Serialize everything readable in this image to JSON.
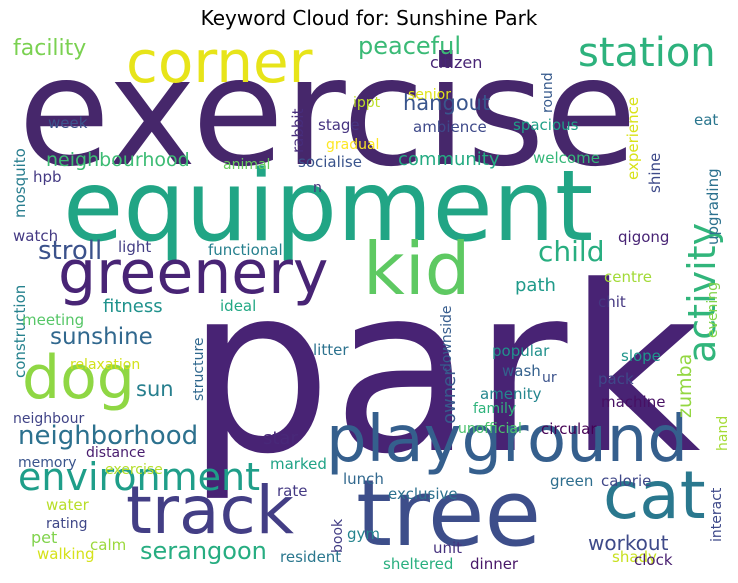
{
  "title": "Keyword Cloud for: Sunshine Park",
  "words": [
    {
      "text": "exercise",
      "color": "#46276b"
    },
    {
      "text": "park",
      "color": "#482374"
    },
    {
      "text": "equipment",
      "color": "#21a585"
    },
    {
      "text": "tree",
      "color": "#3d4e8a"
    },
    {
      "text": "playground",
      "color": "#355f8d"
    },
    {
      "text": "track",
      "color": "#433e85"
    },
    {
      "text": "kid",
      "color": "#5ec962"
    },
    {
      "text": "greenery",
      "color": "#482475"
    },
    {
      "text": "corner",
      "color": "#e7e419"
    },
    {
      "text": "station",
      "color": "#2db27d"
    },
    {
      "text": "dog",
      "color": "#8fd744"
    },
    {
      "text": "cat",
      "color": "#2a788e"
    },
    {
      "text": "environment",
      "color": "#1f9e89"
    },
    {
      "text": "activity",
      "color": "#31b57b"
    },
    {
      "text": "neighborhood",
      "color": "#2c718e"
    },
    {
      "text": "serangoon",
      "color": "#27ad81"
    },
    {
      "text": "stroll",
      "color": "#3b528b"
    },
    {
      "text": "child",
      "color": "#28ae80"
    },
    {
      "text": "sunshine",
      "color": "#31688e"
    },
    {
      "text": "peaceful",
      "color": "#3aba76"
    },
    {
      "text": "hangout",
      "color": "#39558c"
    },
    {
      "text": "facility",
      "color": "#7ad151"
    },
    {
      "text": "neighbourhood",
      "color": "#3dbc74"
    },
    {
      "text": "community",
      "color": "#25ab82"
    },
    {
      "text": "workout",
      "color": "#3e4a89"
    },
    {
      "text": "fitness",
      "color": "#20928c"
    },
    {
      "text": "owner",
      "color": "#38598c"
    },
    {
      "text": "sun",
      "color": "#277f8e"
    },
    {
      "text": "path",
      "color": "#1f9a8a"
    },
    {
      "text": "star",
      "color": "#482878"
    },
    {
      "text": "zumba",
      "color": "#93d741"
    },
    {
      "text": "citizen",
      "color": "#482576"
    },
    {
      "text": "round",
      "color": "#375a8c"
    },
    {
      "text": "week",
      "color": "#3b528b"
    },
    {
      "text": "stage",
      "color": "#463480"
    },
    {
      "text": "ambience",
      "color": "#3e4989"
    },
    {
      "text": "spacious",
      "color": "#1fa088"
    },
    {
      "text": "eat",
      "color": "#2a768e"
    },
    {
      "text": "senior",
      "color": "#dfe318"
    },
    {
      "text": "ippt",
      "color": "#bddf26"
    },
    {
      "text": "gradual",
      "color": "#fde725"
    },
    {
      "text": "rabbit",
      "color": "#472d7b"
    },
    {
      "text": "experience",
      "color": "#d8e219"
    },
    {
      "text": "mosquito",
      "color": "#287d8e"
    },
    {
      "text": "animal",
      "color": "#67cc5c"
    },
    {
      "text": "socialise",
      "color": "#3a548c"
    },
    {
      "text": "welcome",
      "color": "#35b779"
    },
    {
      "text": "hpb",
      "color": "#443a83"
    },
    {
      "text": "n",
      "color": "#46327e"
    },
    {
      "text": "shine",
      "color": "#3e4a89"
    },
    {
      "text": "upgrading",
      "color": "#2c718e"
    },
    {
      "text": "watch",
      "color": "#443983"
    },
    {
      "text": "light",
      "color": "#433d84"
    },
    {
      "text": "functional",
      "color": "#27808e"
    },
    {
      "text": "qigong",
      "color": "#482475"
    },
    {
      "text": "centre",
      "color": "#a2da37"
    },
    {
      "text": "construction",
      "color": "#26828e"
    },
    {
      "text": "evening",
      "color": "#84d44b"
    },
    {
      "text": "meeting",
      "color": "#56c667"
    },
    {
      "text": "ideal",
      "color": "#22a884"
    },
    {
      "text": "chit",
      "color": "#453781"
    },
    {
      "text": "relaxation",
      "color": "#d2e21b"
    },
    {
      "text": "downside",
      "color": "#365c8d"
    },
    {
      "text": "popular",
      "color": "#21918c"
    },
    {
      "text": "slope",
      "color": "#1f958b"
    },
    {
      "text": "litter",
      "color": "#2c728e"
    },
    {
      "text": "structure",
      "color": "#31688e"
    },
    {
      "text": "wash",
      "color": "#34618d"
    },
    {
      "text": "ur",
      "color": "#3b528b"
    },
    {
      "text": "pack",
      "color": "#3f4889"
    },
    {
      "text": "neighbour",
      "color": "#414487"
    },
    {
      "text": "amenity",
      "color": "#24868e"
    },
    {
      "text": "family",
      "color": "#2fb47c"
    },
    {
      "text": "machine",
      "color": "#471063"
    },
    {
      "text": "memory",
      "color": "#3a548c"
    },
    {
      "text": "distance",
      "color": "#481c6e"
    },
    {
      "text": "unofficial",
      "color": "#4ac16d"
    },
    {
      "text": "circular",
      "color": "#440154"
    },
    {
      "text": "hand",
      "color": "#a5db36"
    },
    {
      "text": "exercise",
      "color": "#b5de2b"
    },
    {
      "text": "marked",
      "color": "#20a386"
    },
    {
      "text": "rate",
      "color": "#443983"
    },
    {
      "text": "lunch",
      "color": "#31688e"
    },
    {
      "text": "interact",
      "color": "#3e4989"
    },
    {
      "text": "green",
      "color": "#2e6e8e"
    },
    {
      "text": "calorie",
      "color": "#3f4788"
    },
    {
      "text": "exclusive",
      "color": "#2d708e"
    },
    {
      "text": "water",
      "color": "#b8de29"
    },
    {
      "text": "pet",
      "color": "#81d34d"
    },
    {
      "text": "rating",
      "color": "#3f4788"
    },
    {
      "text": "book",
      "color": "#433e85"
    },
    {
      "text": "gym",
      "color": "#25848e"
    },
    {
      "text": "walking",
      "color": "#d5e21a"
    },
    {
      "text": "calm",
      "color": "#9bd93c"
    },
    {
      "text": "resident",
      "color": "#2a778e"
    },
    {
      "text": "unit",
      "color": "#46327e"
    },
    {
      "text": "sheltered",
      "color": "#29af7f"
    },
    {
      "text": "dinner",
      "color": "#481769"
    },
    {
      "text": "shady",
      "color": "#c8e020"
    },
    {
      "text": "clock",
      "color": "#481f70"
    }
  ]
}
